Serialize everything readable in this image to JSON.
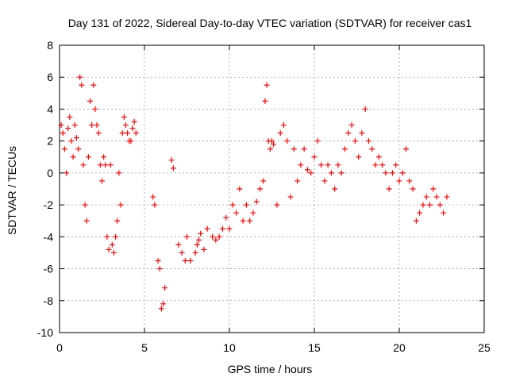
{
  "chart_data": {
    "type": "scatter",
    "title": "Day 131 of 2022, Sidereal Day-to-day VTEC variation (SDTVAR) for receiver cas1",
    "xlabel": "GPS time / hours",
    "ylabel": "SDTVAR / TECUs",
    "xlim": [
      0,
      25
    ],
    "ylim": [
      -10,
      8
    ],
    "x_ticks": [
      0,
      5,
      10,
      15,
      20,
      25
    ],
    "y_ticks": [
      -10,
      -8,
      -6,
      -4,
      -2,
      0,
      2,
      4,
      6,
      8
    ],
    "x_tick_labels": [
      "0",
      "5",
      "10",
      "15",
      "20",
      "25"
    ],
    "y_tick_labels": [
      "-10",
      "-8",
      "-6",
      "-4",
      "-2",
      "0",
      "2",
      "4",
      "6",
      "8"
    ],
    "grid": true,
    "marker": "+",
    "series": [
      {
        "name": "SDTVAR",
        "color": "#ff0000",
        "x": [
          0.1,
          0.2,
          0.3,
          0.4,
          0.5,
          0.6,
          0.7,
          0.8,
          0.9,
          1.0,
          1.1,
          1.2,
          1.3,
          1.4,
          1.5,
          1.6,
          1.7,
          1.8,
          1.9,
          2.0,
          2.1,
          2.2,
          2.3,
          2.4,
          2.5,
          2.6,
          2.7,
          2.8,
          2.9,
          3.0,
          3.1,
          3.2,
          3.3,
          3.4,
          3.5,
          3.6,
          3.7,
          3.8,
          3.9,
          4.0,
          4.1,
          4.2,
          4.3,
          4.4,
          4.5,
          5.5,
          5.6,
          5.8,
          5.9,
          6.0,
          6.1,
          6.2,
          6.6,
          6.7,
          7.0,
          7.2,
          7.4,
          7.5,
          7.7,
          8.0,
          8.1,
          8.2,
          8.3,
          8.5,
          8.7,
          9.0,
          9.2,
          9.4,
          9.6,
          9.8,
          10.0,
          10.2,
          10.4,
          10.6,
          10.8,
          11.0,
          11.2,
          11.4,
          11.6,
          11.8,
          12.0,
          12.1,
          12.2,
          12.3,
          12.4,
          12.5,
          12.6,
          12.8,
          13.0,
          13.2,
          13.4,
          13.6,
          13.8,
          14.0,
          14.2,
          14.4,
          14.6,
          14.8,
          15.0,
          15.2,
          15.4,
          15.6,
          15.8,
          16.0,
          16.2,
          16.4,
          16.6,
          16.8,
          17.0,
          17.2,
          17.4,
          17.6,
          17.8,
          18.0,
          18.2,
          18.4,
          18.6,
          18.8,
          19.0,
          19.2,
          19.4,
          19.6,
          19.8,
          20.0,
          20.2,
          20.4,
          20.6,
          20.8,
          21.0,
          21.2,
          21.4,
          21.6,
          21.8,
          22.0,
          22.2,
          22.4,
          22.6,
          22.8
        ],
        "y": [
          3.0,
          2.5,
          1.5,
          0.0,
          2.8,
          3.5,
          2.0,
          1.0,
          3.0,
          2.2,
          1.5,
          6.0,
          5.5,
          0.5,
          -2.0,
          -3.0,
          1.0,
          4.5,
          3.0,
          5.5,
          4.0,
          3.0,
          2.5,
          0.5,
          -0.5,
          1.0,
          0.5,
          -4.0,
          -4.8,
          0.5,
          -4.5,
          -5.0,
          -4.0,
          -3.0,
          0.0,
          -2.0,
          2.5,
          3.5,
          3.0,
          2.5,
          2.0,
          2.0,
          2.8,
          3.2,
          2.5,
          -1.5,
          -2.0,
          -5.5,
          -6.0,
          -8.5,
          -8.2,
          -7.2,
          0.8,
          0.3,
          -4.5,
          -5.0,
          -5.5,
          -4.0,
          -5.5,
          -5.0,
          -4.5,
          -4.2,
          -3.8,
          -4.8,
          -3.5,
          -4.0,
          -4.2,
          -4.0,
          -3.5,
          -2.8,
          -3.5,
          -2.0,
          -2.5,
          -1.0,
          -3.0,
          -2.0,
          -3.0,
          -2.5,
          -1.8,
          -1.0,
          -0.5,
          4.5,
          5.5,
          2.0,
          1.5,
          2.0,
          1.8,
          -2.0,
          2.5,
          3.0,
          2.0,
          -1.5,
          1.5,
          -0.5,
          0.5,
          1.5,
          0.2,
          0.0,
          1.0,
          2.0,
          0.5,
          -0.5,
          0.5,
          0.0,
          -1.0,
          0.5,
          0.0,
          1.5,
          2.5,
          3.0,
          2.0,
          1.0,
          2.5,
          4.0,
          2.0,
          1.5,
          0.5,
          1.0,
          0.5,
          0.0,
          -1.0,
          0.0,
          0.5,
          -0.5,
          0.0,
          1.5,
          -0.5,
          -1.0,
          -3.0,
          -2.5,
          -2.0,
          -1.5,
          -2.0,
          -1.0,
          -1.5,
          -2.0,
          -2.5,
          -1.5
        ]
      }
    ]
  }
}
